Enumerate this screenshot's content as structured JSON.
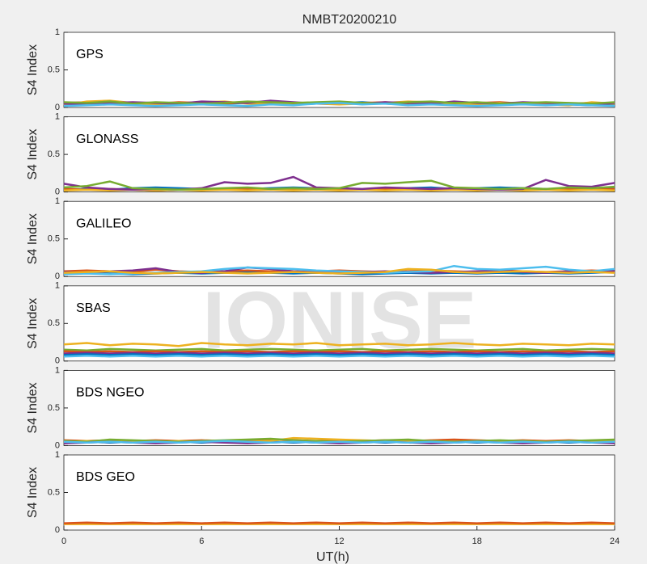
{
  "watermark": "IONISE",
  "chart_data": [
    {
      "type": "line",
      "title": "NMBT20200210",
      "label": "GPS",
      "ylabel": "S4 Index",
      "x": [
        0,
        1,
        2,
        3,
        4,
        5,
        6,
        7,
        8,
        9,
        10,
        11,
        12,
        13,
        14,
        15,
        16,
        17,
        18,
        19,
        20,
        21,
        22,
        23,
        24
      ],
      "xlim": [
        0,
        24
      ],
      "ylim": [
        0,
        1
      ],
      "yticks": [
        0,
        0.5,
        1
      ],
      "series": [
        {
          "color": "#0072BD",
          "values": [
            0.04,
            0.05,
            0.04,
            0.05,
            0.06,
            0.05,
            0.04,
            0.05,
            0.06,
            0.05,
            0.04,
            0.05,
            0.06,
            0.07,
            0.05,
            0.04,
            0.05,
            0.06,
            0.04,
            0.05,
            0.04,
            0.05,
            0.04,
            0.03,
            0.04
          ]
        },
        {
          "color": "#D95319",
          "values": [
            0.06,
            0.07,
            0.05,
            0.06,
            0.05,
            0.07,
            0.06,
            0.05,
            0.07,
            0.06,
            0.05,
            0.06,
            0.05,
            0.06,
            0.07,
            0.05,
            0.06,
            0.05,
            0.06,
            0.07,
            0.05,
            0.06,
            0.05,
            0.06,
            0.05
          ]
        },
        {
          "color": "#EDB120",
          "values": [
            0.03,
            0.08,
            0.09,
            0.06,
            0.04,
            0.05,
            0.07,
            0.08,
            0.05,
            0.04,
            0.06,
            0.05,
            0.04,
            0.05,
            0.06,
            0.08,
            0.07,
            0.05,
            0.04,
            0.06,
            0.05,
            0.04,
            0.03,
            0.07,
            0.05
          ]
        },
        {
          "color": "#7E2F8E",
          "values": [
            0.05,
            0.04,
            0.06,
            0.07,
            0.06,
            0.05,
            0.08,
            0.07,
            0.06,
            0.09,
            0.07,
            0.05,
            0.06,
            0.05,
            0.07,
            0.06,
            0.05,
            0.08,
            0.06,
            0.05,
            0.07,
            0.06,
            0.05,
            0.04,
            0.06
          ]
        },
        {
          "color": "#77AC30",
          "values": [
            0.07,
            0.06,
            0.08,
            0.05,
            0.07,
            0.06,
            0.05,
            0.06,
            0.08,
            0.07,
            0.06,
            0.07,
            0.08,
            0.06,
            0.05,
            0.07,
            0.08,
            0.06,
            0.07,
            0.05,
            0.06,
            0.07,
            0.06,
            0.05,
            0.07
          ]
        },
        {
          "color": "#4DBEEE",
          "values": [
            0.02,
            0.03,
            0.04,
            0.03,
            0.02,
            0.03,
            0.04,
            0.03,
            0.02,
            0.04,
            0.03,
            0.05,
            0.06,
            0.04,
            0.05,
            0.03,
            0.04,
            0.03,
            0.02,
            0.03,
            0.04,
            0.03,
            0.04,
            0.03,
            0.02
          ]
        }
      ]
    },
    {
      "type": "line",
      "label": "GLONASS",
      "ylabel": "S4 Index",
      "x": [
        0,
        1,
        2,
        3,
        4,
        5,
        6,
        7,
        8,
        9,
        10,
        11,
        12,
        13,
        14,
        15,
        16,
        17,
        18,
        19,
        20,
        21,
        22,
        23,
        24
      ],
      "xlim": [
        0,
        24
      ],
      "ylim": [
        0,
        1
      ],
      "yticks": [
        0,
        0.5,
        1
      ],
      "series": [
        {
          "color": "#0072BD",
          "values": [
            0.03,
            0.04,
            0.03,
            0.05,
            0.06,
            0.05,
            0.04,
            0.03,
            0.04,
            0.05,
            0.06,
            0.05,
            0.04,
            0.03,
            0.04,
            0.05,
            0.06,
            0.04,
            0.05,
            0.06,
            0.05,
            0.04,
            0.03,
            0.04,
            0.05
          ]
        },
        {
          "color": "#D95319",
          "values": [
            0.04,
            0.03,
            0.04,
            0.03,
            0.02,
            0.03,
            0.04,
            0.03,
            0.04,
            0.03,
            0.04,
            0.05,
            0.04,
            0.03,
            0.04,
            0.03,
            0.04,
            0.05,
            0.04,
            0.03,
            0.04,
            0.03,
            0.04,
            0.03,
            0.04
          ]
        },
        {
          "color": "#EDB120",
          "values": [
            0.02,
            0.03,
            0.02,
            0.03,
            0.02,
            0.03,
            0.02,
            0.03,
            0.02,
            0.03,
            0.02,
            0.03,
            0.02,
            0.03,
            0.02,
            0.03,
            0.02,
            0.03,
            0.02,
            0.03,
            0.02,
            0.03,
            0.02,
            0.03,
            0.02
          ]
        },
        {
          "color": "#7E2F8E",
          "values": [
            0.11,
            0.06,
            0.04,
            0.03,
            0.04,
            0.03,
            0.05,
            0.13,
            0.11,
            0.12,
            0.2,
            0.06,
            0.05,
            0.04,
            0.06,
            0.05,
            0.04,
            0.05,
            0.04,
            0.03,
            0.04,
            0.16,
            0.08,
            0.07,
            0.12
          ]
        },
        {
          "color": "#77AC30",
          "values": [
            0.06,
            0.08,
            0.14,
            0.05,
            0.04,
            0.03,
            0.04,
            0.05,
            0.06,
            0.04,
            0.05,
            0.04,
            0.05,
            0.12,
            0.11,
            0.13,
            0.15,
            0.06,
            0.05,
            0.04,
            0.05,
            0.04,
            0.06,
            0.05,
            0.07
          ]
        }
      ]
    },
    {
      "type": "line",
      "label": "GALILEO",
      "ylabel": "S4 Index",
      "x": [
        0,
        1,
        2,
        3,
        4,
        5,
        6,
        7,
        8,
        9,
        10,
        11,
        12,
        13,
        14,
        15,
        16,
        17,
        18,
        19,
        20,
        21,
        22,
        23,
        24
      ],
      "xlim": [
        0,
        24
      ],
      "ylim": [
        0,
        1
      ],
      "yticks": [
        0,
        0.5,
        1
      ],
      "series": [
        {
          "color": "#0072BD",
          "values": [
            0.04,
            0.05,
            0.04,
            0.03,
            0.04,
            0.05,
            0.04,
            0.05,
            0.06,
            0.05,
            0.04,
            0.05,
            0.04,
            0.03,
            0.04,
            0.05,
            0.04,
            0.05,
            0.04,
            0.05,
            0.04,
            0.05,
            0.04,
            0.05,
            0.06
          ]
        },
        {
          "color": "#D95319",
          "values": [
            0.07,
            0.08,
            0.07,
            0.06,
            0.09,
            0.07,
            0.06,
            0.07,
            0.08,
            0.07,
            0.06,
            0.07,
            0.08,
            0.07,
            0.06,
            0.07,
            0.08,
            0.07,
            0.06,
            0.08,
            0.07,
            0.06,
            0.07,
            0.08,
            0.07
          ]
        },
        {
          "color": "#7E2F8E",
          "values": [
            0.06,
            0.05,
            0.07,
            0.08,
            0.11,
            0.06,
            0.05,
            0.07,
            0.12,
            0.1,
            0.07,
            0.06,
            0.05,
            0.06,
            0.07,
            0.06,
            0.05,
            0.06,
            0.07,
            0.08,
            0.06,
            0.05,
            0.07,
            0.06,
            0.08
          ]
        },
        {
          "color": "#4DBEEE",
          "values": [
            0.03,
            0.04,
            0.03,
            0.04,
            0.05,
            0.06,
            0.07,
            0.1,
            0.12,
            0.11,
            0.1,
            0.08,
            0.07,
            0.06,
            0.05,
            0.06,
            0.07,
            0.14,
            0.1,
            0.09,
            0.11,
            0.13,
            0.09,
            0.07,
            0.1
          ]
        },
        {
          "color": "#EDB120",
          "values": [
            0.05,
            0.06,
            0.07,
            0.05,
            0.04,
            0.05,
            0.06,
            0.05,
            0.04,
            0.05,
            0.06,
            0.05,
            0.04,
            0.05,
            0.06,
            0.1,
            0.09,
            0.06,
            0.05,
            0.06,
            0.07,
            0.06,
            0.05,
            0.06,
            0.05
          ]
        }
      ]
    },
    {
      "type": "line",
      "label": "SBAS",
      "ylabel": "S4 Index",
      "x": [
        0,
        1,
        2,
        3,
        4,
        5,
        6,
        7,
        8,
        9,
        10,
        11,
        12,
        13,
        14,
        15,
        16,
        17,
        18,
        19,
        20,
        21,
        22,
        23,
        24
      ],
      "xlim": [
        0,
        24
      ],
      "ylim": [
        0,
        1
      ],
      "yticks": [
        0,
        0.5,
        1
      ],
      "series": [
        {
          "color": "#EDB120",
          "values": [
            0.22,
            0.24,
            0.21,
            0.23,
            0.22,
            0.2,
            0.24,
            0.22,
            0.21,
            0.23,
            0.22,
            0.24,
            0.21,
            0.22,
            0.23,
            0.21,
            0.22,
            0.24,
            0.22,
            0.21,
            0.23,
            0.22,
            0.21,
            0.23,
            0.22
          ]
        },
        {
          "color": "#77AC30",
          "values": [
            0.15,
            0.14,
            0.16,
            0.15,
            0.14,
            0.15,
            0.16,
            0.14,
            0.15,
            0.16,
            0.15,
            0.14,
            0.15,
            0.16,
            0.14,
            0.15,
            0.16,
            0.15,
            0.14,
            0.15,
            0.16,
            0.14,
            0.15,
            0.16,
            0.15
          ]
        },
        {
          "color": "#D95319",
          "values": [
            0.13,
            0.12,
            0.13,
            0.12,
            0.13,
            0.12,
            0.13,
            0.12,
            0.13,
            0.12,
            0.13,
            0.12,
            0.13,
            0.12,
            0.13,
            0.12,
            0.13,
            0.12,
            0.13,
            0.12,
            0.13,
            0.12,
            0.13,
            0.12,
            0.13
          ]
        },
        {
          "color": "#7E2F8E",
          "values": [
            0.1,
            0.11,
            0.1,
            0.11,
            0.1,
            0.11,
            0.1,
            0.11,
            0.1,
            0.11,
            0.1,
            0.11,
            0.1,
            0.11,
            0.1,
            0.11,
            0.1,
            0.11,
            0.1,
            0.11,
            0.1,
            0.11,
            0.1,
            0.11,
            0.1
          ]
        },
        {
          "color": "#0072BD",
          "values": [
            0.08,
            0.09,
            0.08,
            0.09,
            0.08,
            0.09,
            0.08,
            0.09,
            0.08,
            0.09,
            0.08,
            0.09,
            0.08,
            0.09,
            0.08,
            0.09,
            0.08,
            0.09,
            0.08,
            0.09,
            0.08,
            0.09,
            0.08,
            0.09,
            0.08
          ]
        },
        {
          "color": "#4DBEEE",
          "values": [
            0.06,
            0.07,
            0.06,
            0.07,
            0.06,
            0.07,
            0.06,
            0.07,
            0.06,
            0.07,
            0.06,
            0.07,
            0.06,
            0.07,
            0.06,
            0.07,
            0.06,
            0.07,
            0.06,
            0.07,
            0.06,
            0.07,
            0.06,
            0.07,
            0.06
          ]
        }
      ]
    },
    {
      "type": "line",
      "label": "BDS NGEO",
      "ylabel": "S4 Index",
      "x": [
        0,
        1,
        2,
        3,
        4,
        5,
        6,
        7,
        8,
        9,
        10,
        11,
        12,
        13,
        14,
        15,
        16,
        17,
        18,
        19,
        20,
        21,
        22,
        23,
        24
      ],
      "xlim": [
        0,
        24
      ],
      "ylim": [
        0,
        1
      ],
      "yticks": [
        0,
        0.5,
        1
      ],
      "series": [
        {
          "color": "#0072BD",
          "values": [
            0.04,
            0.05,
            0.04,
            0.05,
            0.04,
            0.05,
            0.04,
            0.05,
            0.06,
            0.05,
            0.04,
            0.05,
            0.04,
            0.05,
            0.04,
            0.05,
            0.04,
            0.05,
            0.04,
            0.05,
            0.04,
            0.05,
            0.04,
            0.05,
            0.04
          ]
        },
        {
          "color": "#D95319",
          "values": [
            0.07,
            0.06,
            0.07,
            0.06,
            0.07,
            0.06,
            0.07,
            0.06,
            0.07,
            0.08,
            0.07,
            0.06,
            0.07,
            0.06,
            0.07,
            0.06,
            0.07,
            0.08,
            0.07,
            0.06,
            0.07,
            0.06,
            0.07,
            0.06,
            0.07
          ]
        },
        {
          "color": "#EDB120",
          "values": [
            0.05,
            0.06,
            0.05,
            0.06,
            0.05,
            0.06,
            0.05,
            0.06,
            0.05,
            0.06,
            0.1,
            0.09,
            0.08,
            0.07,
            0.06,
            0.05,
            0.06,
            0.05,
            0.06,
            0.05,
            0.06,
            0.05,
            0.06,
            0.05,
            0.06
          ]
        },
        {
          "color": "#77AC30",
          "values": [
            0.06,
            0.05,
            0.08,
            0.07,
            0.06,
            0.05,
            0.06,
            0.07,
            0.08,
            0.09,
            0.07,
            0.06,
            0.05,
            0.06,
            0.07,
            0.08,
            0.06,
            0.05,
            0.06,
            0.07,
            0.06,
            0.05,
            0.06,
            0.07,
            0.08
          ]
        },
        {
          "color": "#7E2F8E",
          "values": [
            0.03,
            0.04,
            0.05,
            0.04,
            0.03,
            0.04,
            0.05,
            0.04,
            0.03,
            0.04,
            0.05,
            0.04,
            0.03,
            0.04,
            0.05,
            0.04,
            0.03,
            0.04,
            0.05,
            0.04,
            0.03,
            0.04,
            0.05,
            0.04,
            0.03
          ]
        },
        {
          "color": "#4DBEEE",
          "values": [
            0.05,
            0.04,
            0.05,
            0.04,
            0.05,
            0.04,
            0.05,
            0.06,
            0.05,
            0.04,
            0.05,
            0.04,
            0.05,
            0.04,
            0.05,
            0.04,
            0.05,
            0.04,
            0.05,
            0.04,
            0.05,
            0.04,
            0.05,
            0.04,
            0.05
          ]
        }
      ]
    },
    {
      "type": "line",
      "label": "BDS GEO",
      "ylabel": "S4 Index",
      "x": [
        0,
        1,
        2,
        3,
        4,
        5,
        6,
        7,
        8,
        9,
        10,
        11,
        12,
        13,
        14,
        15,
        16,
        17,
        18,
        19,
        20,
        21,
        22,
        23,
        24
      ],
      "xlim": [
        0,
        24
      ],
      "ylim": [
        0,
        1
      ],
      "yticks": [
        0,
        0.5,
        1
      ],
      "xticks": [
        0,
        6,
        12,
        18,
        24
      ],
      "xlabel": "UT(h)",
      "series": [
        {
          "color": "#EDB120",
          "values": [
            0.08,
            0.08,
            0.08,
            0.08,
            0.08,
            0.08,
            0.08,
            0.08,
            0.08,
            0.08,
            0.08,
            0.08,
            0.08,
            0.08,
            0.08,
            0.08,
            0.08,
            0.08,
            0.08,
            0.08,
            0.08,
            0.08,
            0.08,
            0.08,
            0.08
          ]
        },
        {
          "color": "#D95319",
          "values": [
            0.09,
            0.1,
            0.09,
            0.1,
            0.09,
            0.1,
            0.09,
            0.1,
            0.09,
            0.1,
            0.09,
            0.1,
            0.09,
            0.1,
            0.09,
            0.1,
            0.09,
            0.1,
            0.09,
            0.1,
            0.09,
            0.1,
            0.09,
            0.1,
            0.09
          ]
        }
      ]
    }
  ]
}
